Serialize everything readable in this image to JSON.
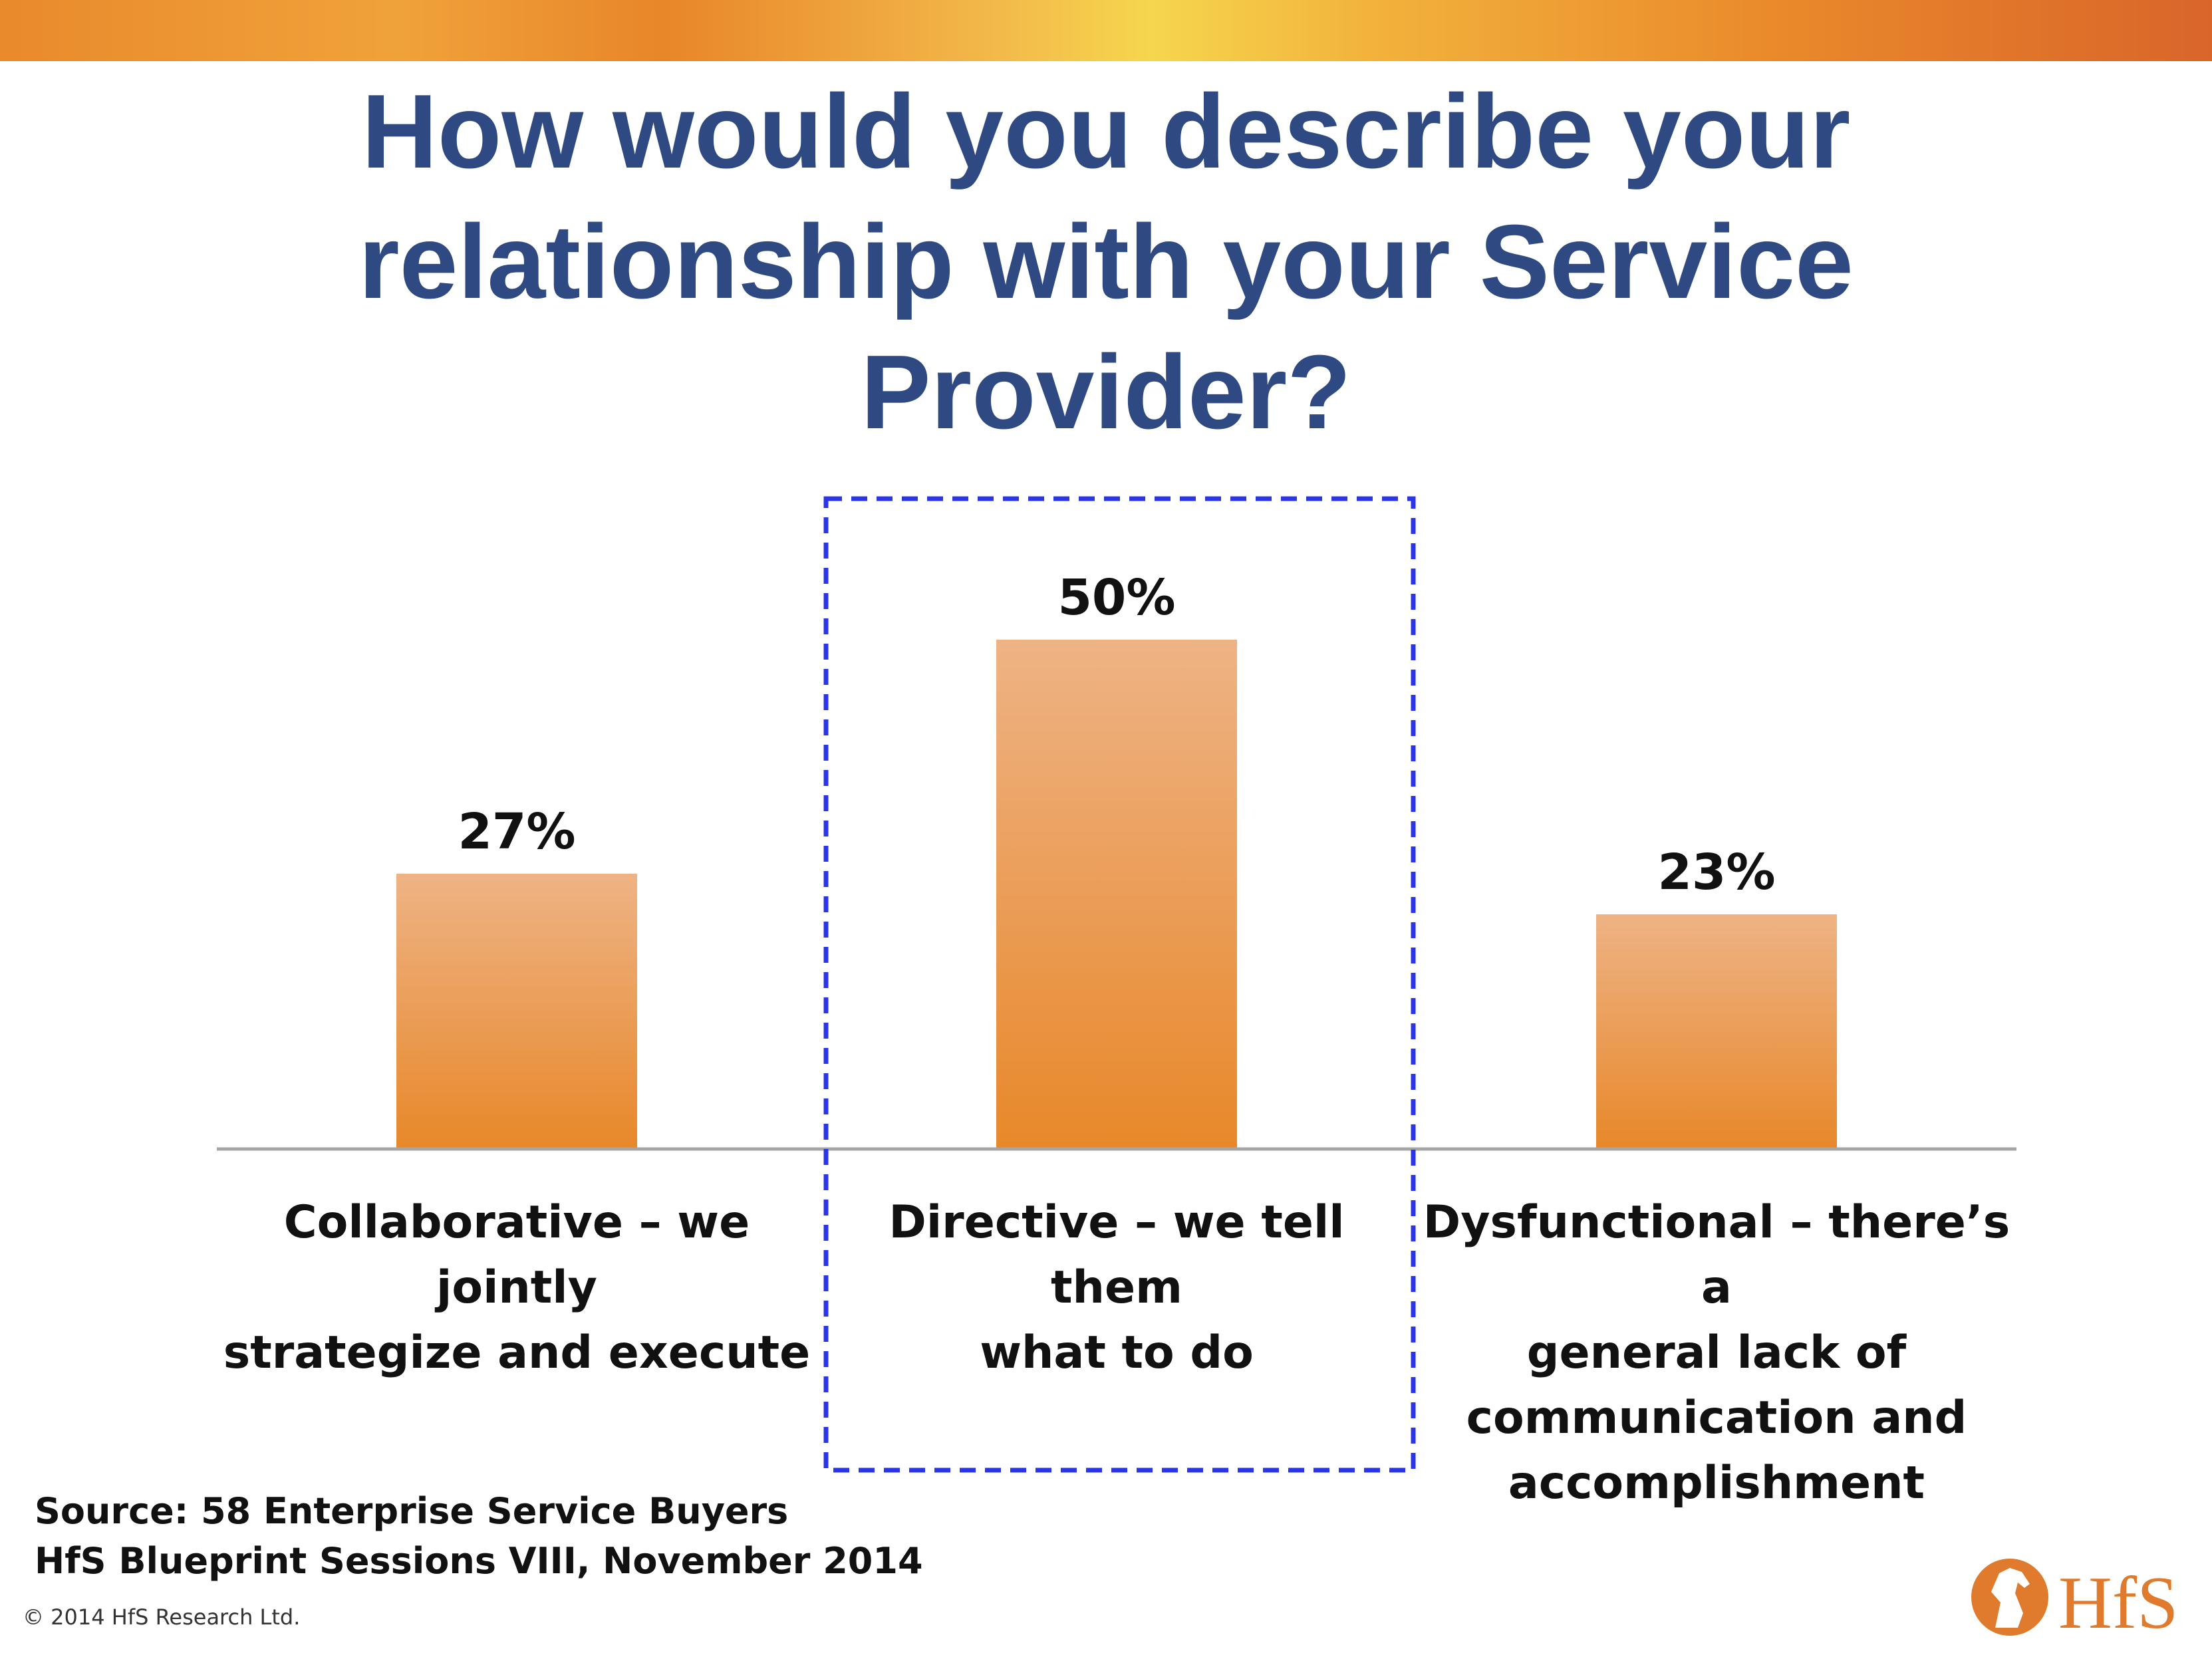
{
  "title": {
    "line1": "How would you describe your",
    "line2": "relationship with your Service",
    "line3": "Provider?"
  },
  "chart_data": {
    "type": "bar",
    "categories": [
      "Collaborative – we jointly strategize and execute",
      "Directive – we tell them what to do",
      "Dysfunctional – there’s a general lack of communication and accomplishment"
    ],
    "values": [
      27,
      50,
      23
    ],
    "value_labels": [
      "27%",
      "50%",
      "23%"
    ],
    "unit": "%",
    "ylim": [
      0,
      62
    ],
    "grid": false,
    "highlighted_category_index": 1,
    "bar_color_top": "#eeb385",
    "bar_color_bottom": "#e8882a",
    "highlight_color": "#2a35e8",
    "category_label_lines": [
      [
        "Collaborative – we jointly",
        "strategize and execute"
      ],
      [
        "Directive – we tell them",
        "what to do"
      ],
      [
        "Dysfunctional – there’s a",
        "general lack of",
        "communication and",
        "accomplishment"
      ]
    ]
  },
  "source": {
    "line1": "Source: 58 Enterprise Service Buyers",
    "line2": "HfS Blueprint Sessions VIII, November 2014"
  },
  "copyright": "© 2014 HfS Research Ltd.",
  "logo": {
    "text": "HfS",
    "icon": "horse-head-icon",
    "color": "#e07a2c"
  }
}
